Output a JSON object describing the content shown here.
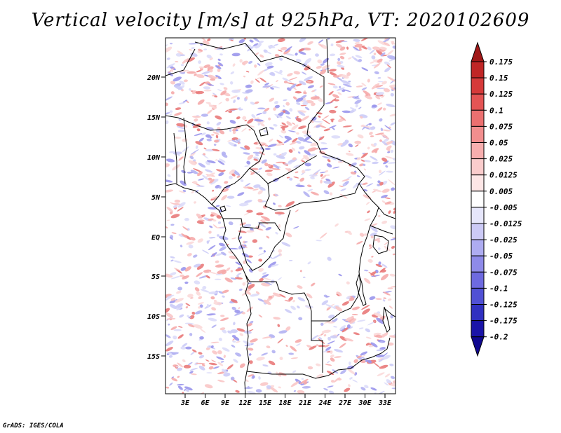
{
  "title": "Vertical velocity [m/s] at 925hPa, VT: 2020102609",
  "credit": "GrADS: IGES/COLA",
  "map": {
    "lat_labels": [
      "20N",
      "15N",
      "10N",
      "5N",
      "EQ",
      "5S",
      "10S",
      "15S"
    ],
    "lon_labels": [
      "3E",
      "6E",
      "9E",
      "12E",
      "15E",
      "18E",
      "21E",
      "24E",
      "27E",
      "30E",
      "33E"
    ]
  },
  "colorbar": {
    "labels": [
      "0.175",
      "0.15",
      "0.125",
      "0.1",
      "0.075",
      "0.05",
      "0.025",
      "0.0125",
      "0.005",
      "-0.005",
      "-0.0125",
      "-0.025",
      "-0.05",
      "-0.075",
      "-0.1",
      "-0.125",
      "-0.175",
      "-0.2"
    ],
    "colors": [
      "#a01818",
      "#c02626",
      "#d63a3a",
      "#e45454",
      "#ec7070",
      "#f28e8e",
      "#f7aeae",
      "#facccc",
      "#fde6e6",
      "#ffffff",
      "#e6e6fb",
      "#cccaf6",
      "#aeacf1",
      "#8e8ae9",
      "#6e6ae0",
      "#5050d4",
      "#3030c0",
      "#1a14a8",
      "#100890"
    ]
  }
}
